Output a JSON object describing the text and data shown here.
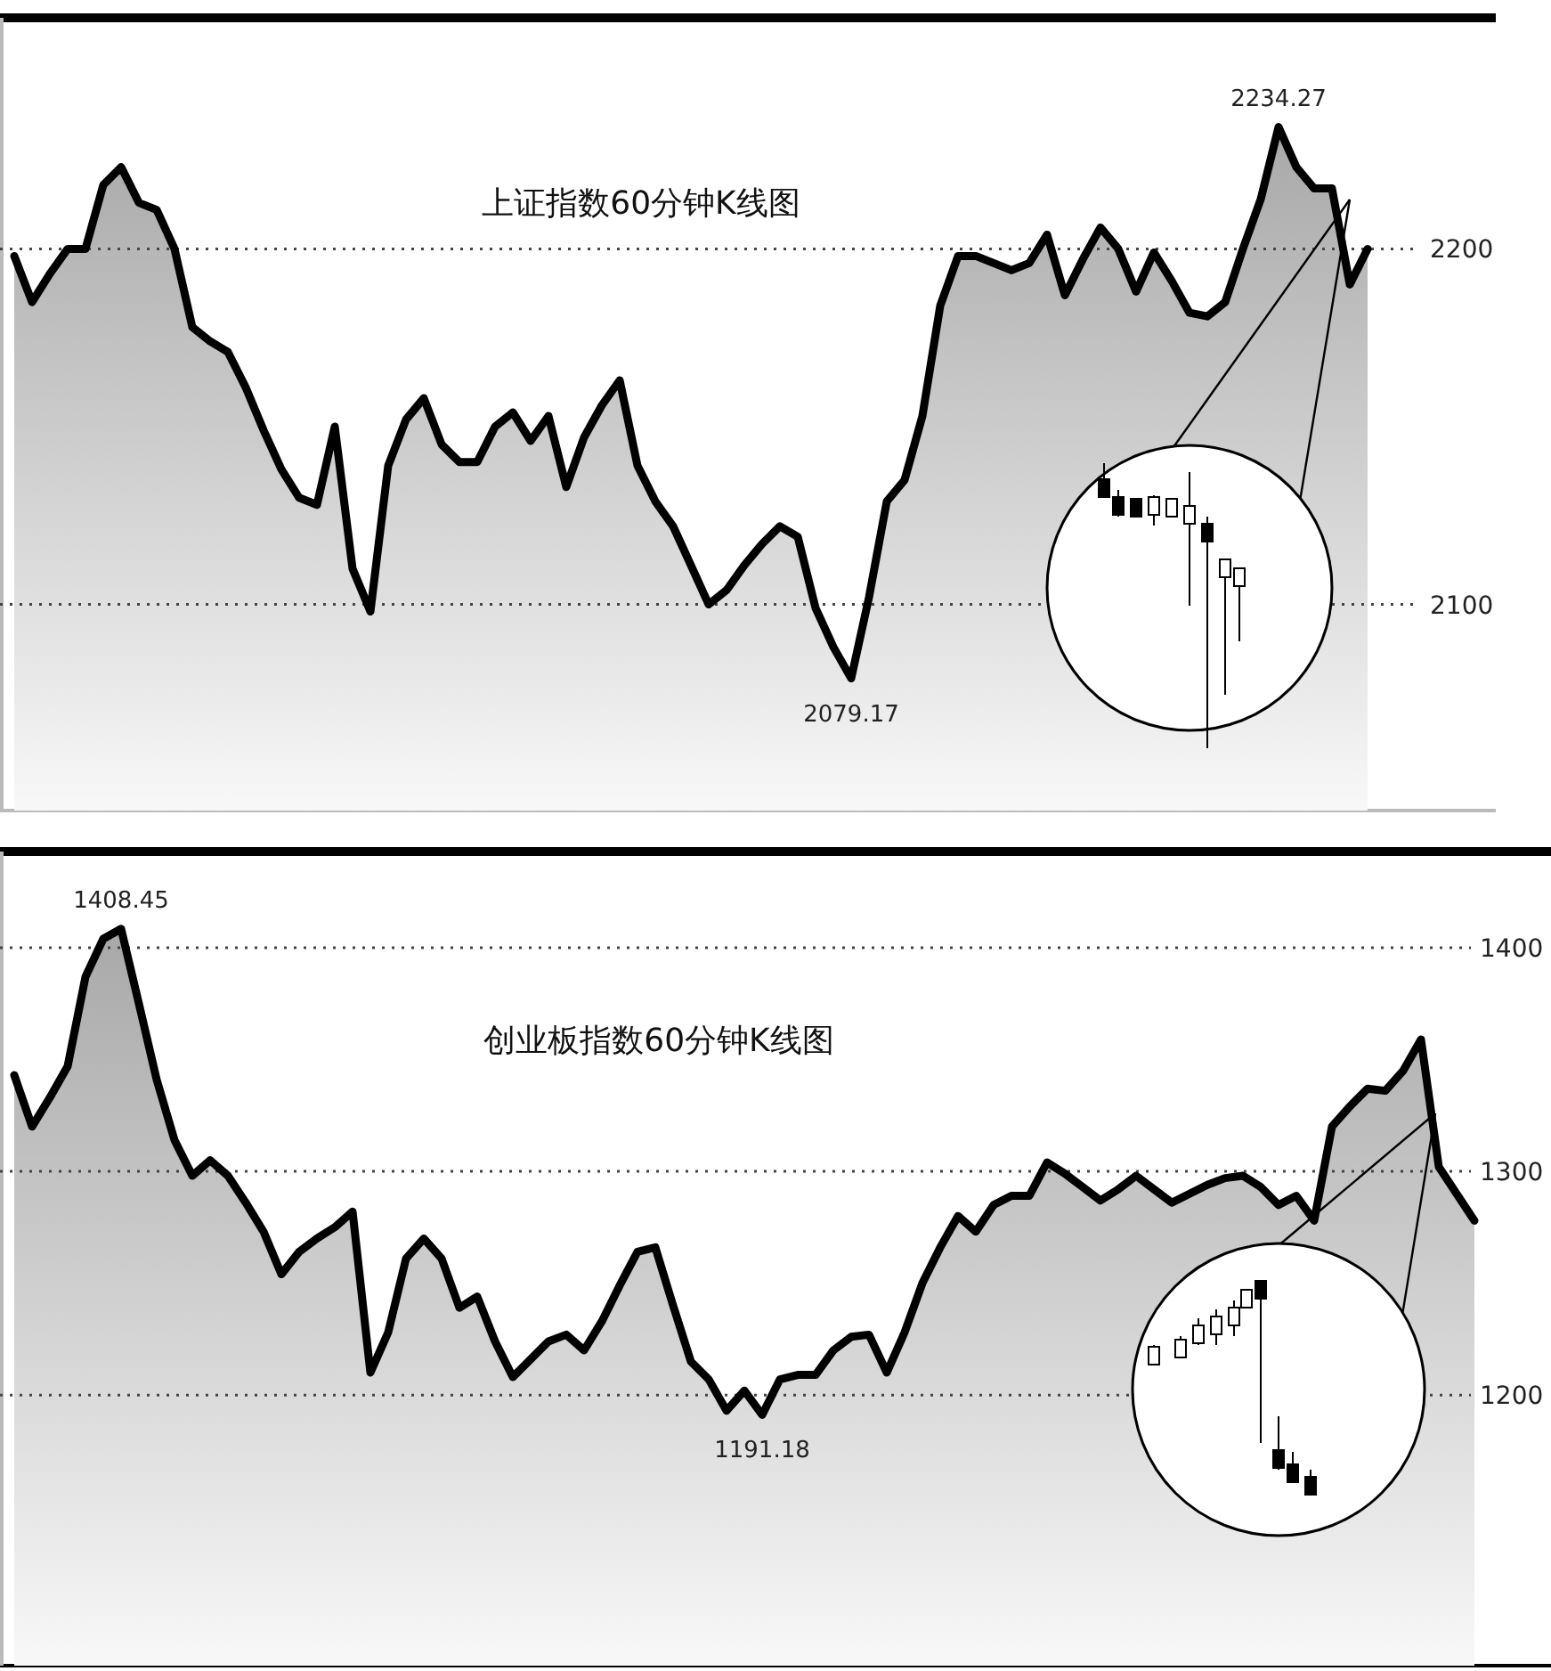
{
  "chart_data": [
    {
      "type": "area",
      "title": "上证指数60分钟K线图",
      "color": "#000000",
      "grid": "y",
      "ylim": [
        2042,
        2265
      ],
      "yticks": [
        2100,
        2200
      ],
      "categories": [
        null,
        null,
        null,
        null,
        null,
        null,
        null,
        null,
        null,
        null,
        null,
        null,
        null,
        null,
        null,
        null,
        null,
        null,
        null,
        null,
        null,
        null,
        null,
        null,
        null,
        null,
        null,
        null,
        null,
        null,
        null,
        null,
        null,
        null,
        null,
        null,
        null,
        null,
        null,
        null,
        null,
        null,
        null,
        null,
        null,
        null,
        null,
        null,
        null,
        null,
        null,
        null,
        null,
        null,
        null,
        null,
        null,
        null,
        null,
        null,
        null,
        null,
        null,
        null,
        null,
        null,
        null,
        null,
        null,
        null,
        null,
        null,
        null,
        null,
        null,
        null,
        null
      ],
      "values": [
        2198,
        2185,
        2193,
        2200,
        2200,
        2218,
        2223,
        2213,
        2211,
        2200,
        2178,
        2174,
        2171,
        2161,
        2149,
        2138,
        2130,
        2128,
        2150,
        2110,
        2098,
        2139,
        2152,
        2158,
        2145,
        2140,
        2140,
        2150,
        2154,
        2146,
        2153,
        2133,
        2147,
        2156,
        2163,
        2139,
        2129,
        2122,
        2111,
        2100,
        2104,
        2111,
        2117,
        2122,
        2119,
        2099,
        2088,
        2079.17,
        2102,
        2129,
        2135,
        2153,
        2184,
        2198,
        2198,
        2196,
        2194,
        2196,
        2204,
        2187,
        2197,
        2206,
        2200,
        2188,
        2199,
        2191,
        2182,
        2181,
        2185,
        2200,
        2214,
        2234.27,
        2223,
        2217,
        2217,
        2190,
        2200
      ],
      "annotations": [
        {
          "text": "2234.27",
          "y": 2234.27
        },
        {
          "text": "2079.17",
          "y": 2079.17
        }
      ]
    },
    {
      "type": "area",
      "title": "创业板指数60分钟K线图",
      "color": "#000000",
      "grid": "y",
      "ylim": [
        1079,
        1443
      ],
      "yticks": [
        1200,
        1300,
        1400
      ],
      "categories": [
        null,
        null,
        null,
        null,
        null,
        null,
        null,
        null,
        null,
        null,
        null,
        null,
        null,
        null,
        null,
        null,
        null,
        null,
        null,
        null,
        null,
        null,
        null,
        null,
        null,
        null,
        null,
        null,
        null,
        null,
        null,
        null,
        null,
        null,
        null,
        null,
        null,
        null,
        null,
        null,
        null,
        null,
        null,
        null,
        null,
        null,
        null,
        null,
        null,
        null,
        null,
        null,
        null,
        null,
        null,
        null,
        null,
        null,
        null,
        null,
        null,
        null,
        null,
        null,
        null,
        null,
        null,
        null,
        null,
        null,
        null,
        null,
        null,
        null,
        null,
        null,
        null,
        null,
        null,
        null,
        null,
        null,
        null
      ],
      "values": [
        1343,
        1320,
        1333,
        1347,
        1387,
        1404,
        1408.45,
        1375,
        1341,
        1314,
        1298,
        1305,
        1298,
        1286,
        1273,
        1254,
        1264,
        1270,
        1275,
        1282,
        1210,
        1228,
        1261,
        1270,
        1261,
        1239,
        1244,
        1224,
        1208,
        1216,
        1224,
        1227,
        1220,
        1233,
        1249,
        1264,
        1266,
        1240,
        1215,
        1207,
        1193,
        1202,
        1191.18,
        1207,
        1209,
        1209,
        1220,
        1226,
        1227,
        1210,
        1228,
        1250,
        1266,
        1280,
        1273,
        1285,
        1289,
        1289,
        1304,
        1299,
        1293,
        1287,
        1292,
        1298,
        1292,
        1286,
        1290,
        1294,
        1297,
        1298,
        1293,
        1285,
        1289,
        1278,
        1320,
        1329,
        1337,
        1336,
        1345,
        1359,
        1302,
        1290,
        1278
      ],
      "annotations": [
        {
          "text": "1408.45",
          "y": 1408.45
        },
        {
          "text": "1191.18",
          "y": 1191.18
        }
      ]
    }
  ]
}
